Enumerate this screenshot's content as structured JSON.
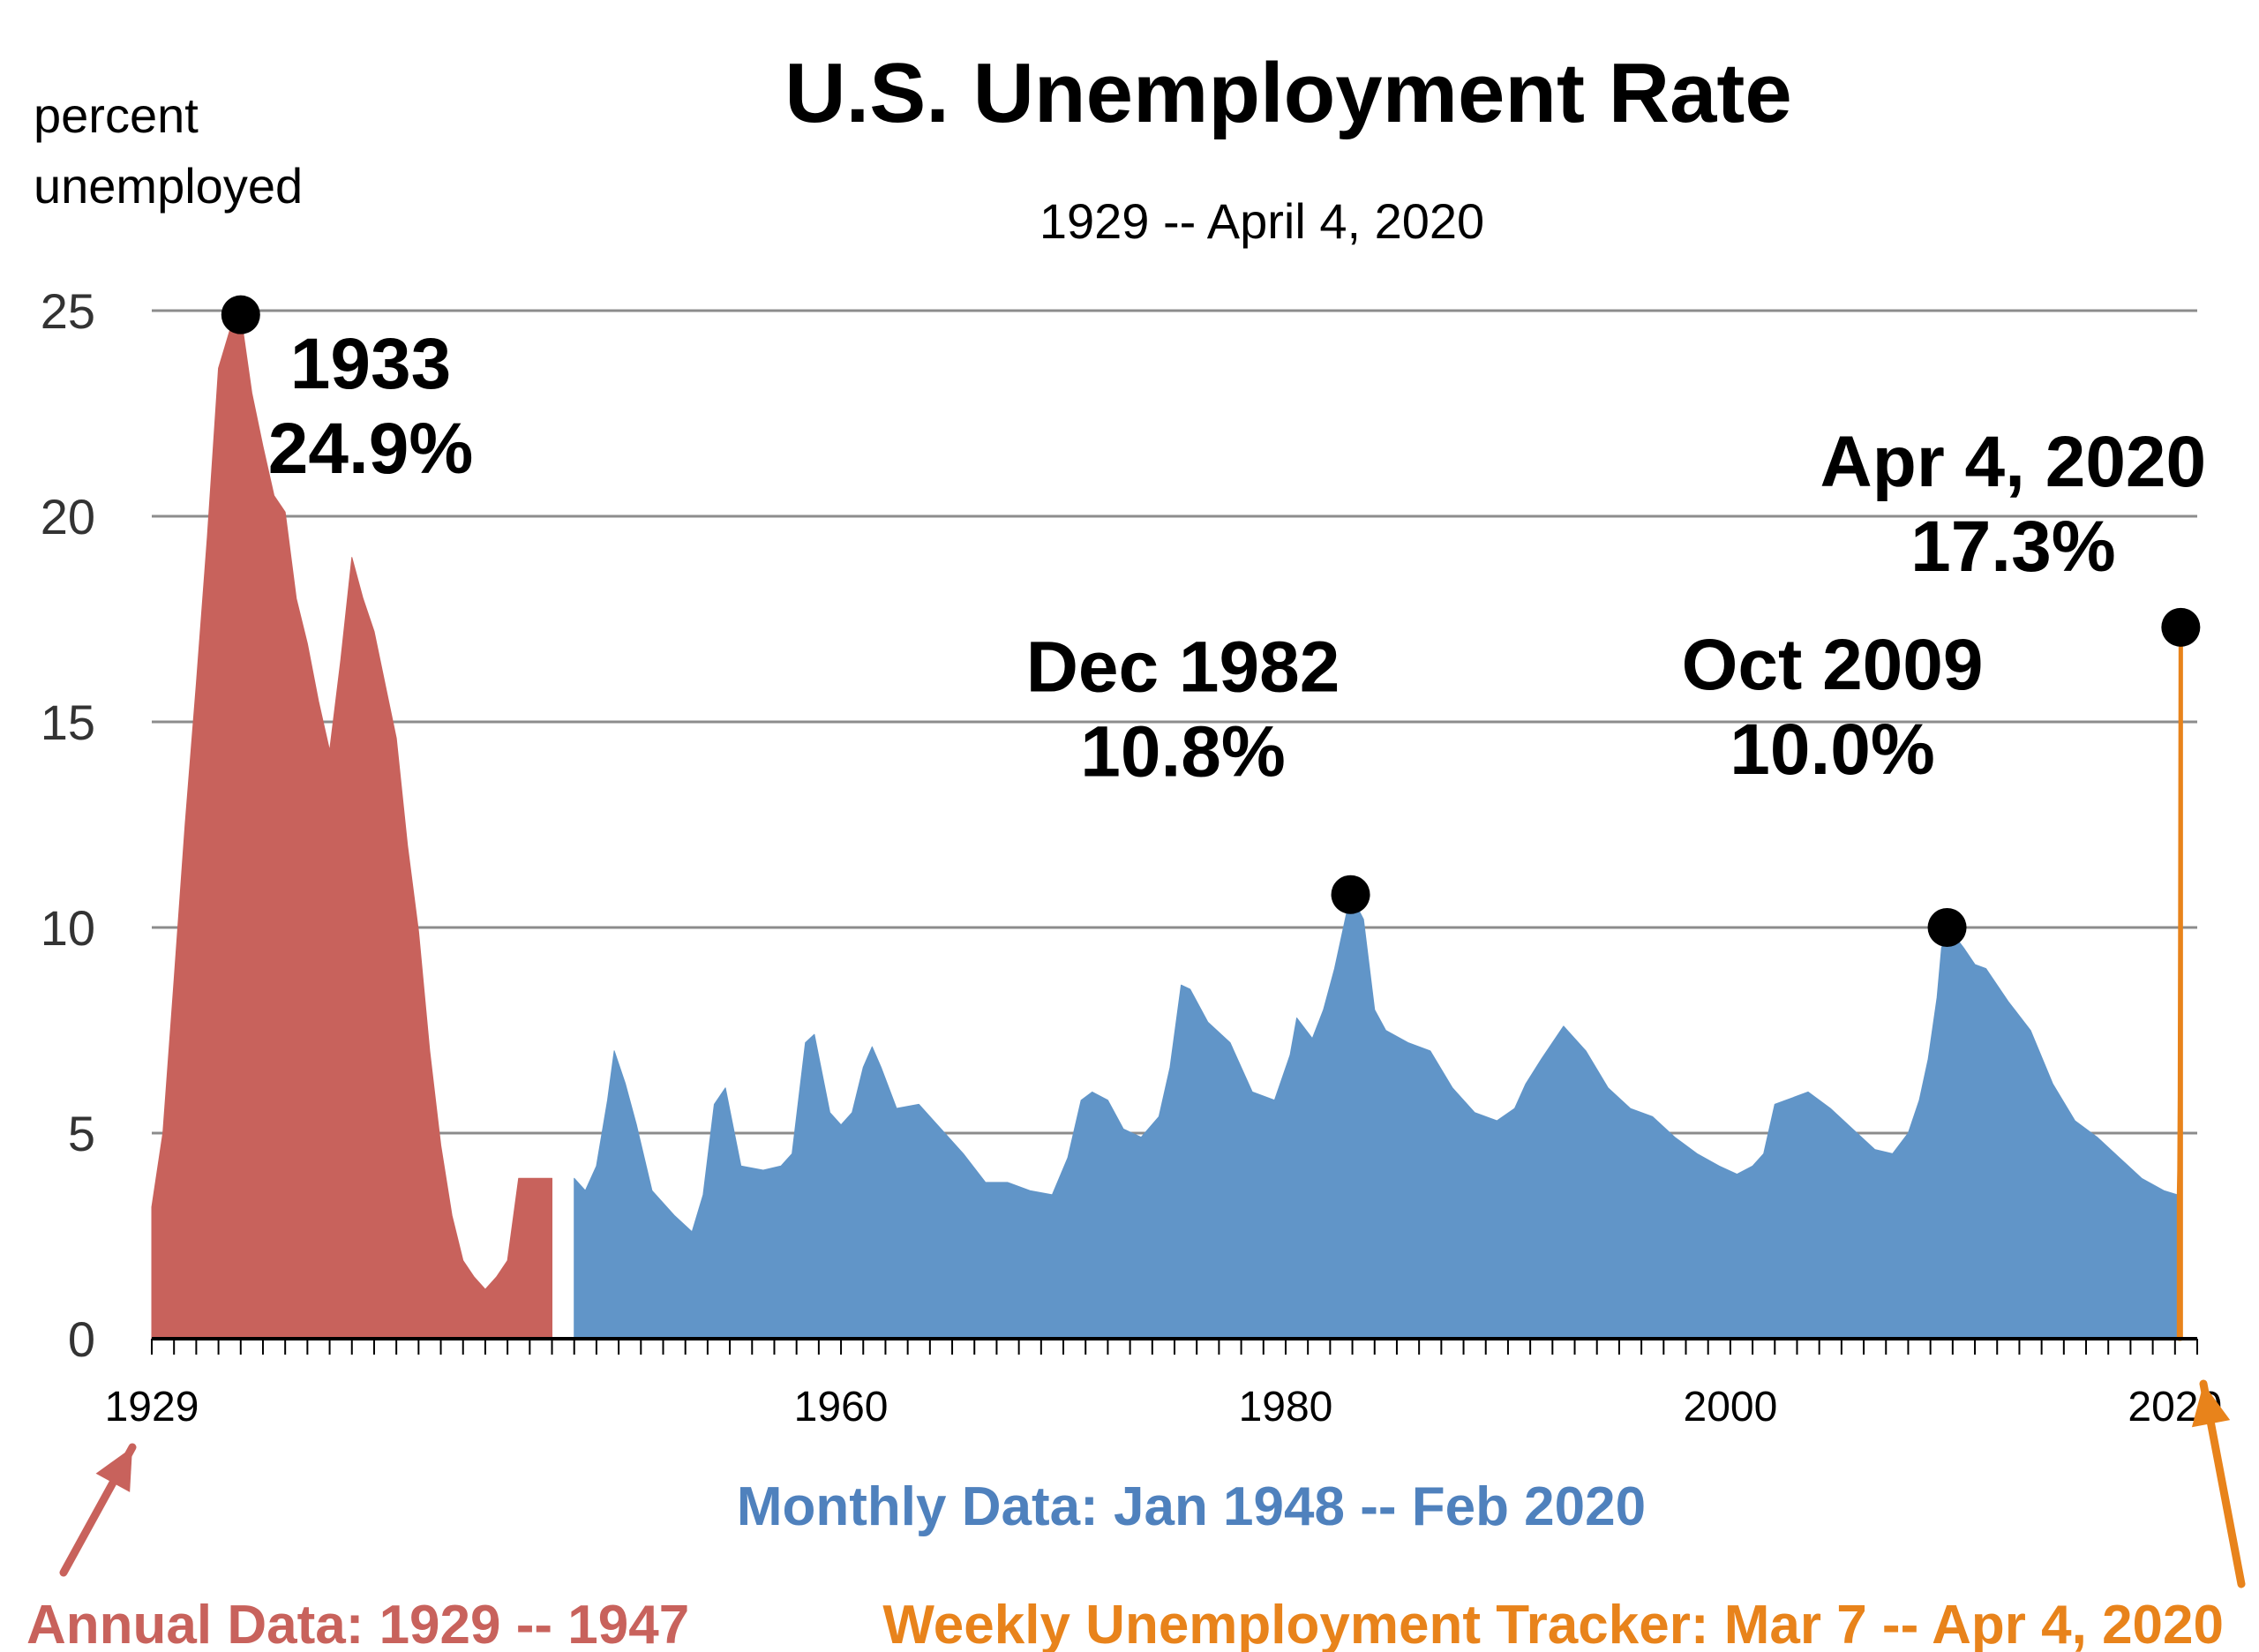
{
  "chart_data": {
    "type": "area",
    "title": "U.S. Unemployment Rate",
    "subtitle": "1929 -- April 4, 2020",
    "ylabel": [
      "percent",
      "unemployed"
    ],
    "ylim": [
      0,
      25
    ],
    "yticks": [
      0,
      5,
      10,
      15,
      20,
      25
    ],
    "xlim": [
      1929,
      2021
    ],
    "xticks": [
      {
        "value": 1929,
        "label": "1929"
      },
      {
        "value": 1960,
        "label": "1960"
      },
      {
        "value": 1980,
        "label": "1980"
      },
      {
        "value": 2000,
        "label": "2000"
      },
      {
        "value": 2020,
        "label": "2020"
      }
    ],
    "grid": true,
    "series": [
      {
        "name": "Annual Data: 1929 -- 1947",
        "color": "#c8625c",
        "x": [
          1929,
          1929.5,
          1930,
          1930.5,
          1931,
          1931.5,
          1932,
          1932.5,
          1933,
          1933.5,
          1934,
          1934.5,
          1935,
          1935.5,
          1936,
          1936.5,
          1937,
          1937.5,
          1938,
          1938.5,
          1939,
          1939.5,
          1940,
          1940.5,
          1941,
          1941.5,
          1942,
          1942.5,
          1943,
          1943.5,
          1944,
          1944.5,
          1945,
          1945.5,
          1946,
          1946.5,
          1947
        ],
        "y": [
          3.2,
          5.0,
          8.7,
          12.5,
          15.9,
          19.5,
          23.6,
          24.5,
          24.9,
          23.0,
          21.7,
          20.5,
          20.1,
          18.0,
          16.9,
          15.5,
          14.3,
          16.5,
          19.0,
          18.0,
          17.2,
          15.9,
          14.6,
          12.0,
          9.9,
          7.0,
          4.7,
          3.0,
          1.9,
          1.5,
          1.2,
          1.5,
          1.9,
          3.9,
          3.9,
          3.9,
          3.9
        ]
      },
      {
        "name": "Monthly Data: Jan 1948 -- Feb 2020",
        "color": "#6195c8",
        "x": [
          1948,
          1948.5,
          1949,
          1949.5,
          1949.8,
          1950.3,
          1950.8,
          1951.5,
          1952.5,
          1953.3,
          1953.8,
          1954.3,
          1954.8,
          1955.5,
          1956.5,
          1957.3,
          1957.8,
          1958.4,
          1958.8,
          1959.5,
          1960,
          1960.5,
          1961,
          1961.4,
          1961.8,
          1962.5,
          1963.5,
          1964.5,
          1965.5,
          1966.5,
          1967.5,
          1968.5,
          1969.5,
          1970.2,
          1970.8,
          1971.3,
          1972,
          1972.7,
          1973.5,
          1974.3,
          1974.8,
          1975.3,
          1975.7,
          1976.5,
          1977.5,
          1978.5,
          1979.5,
          1980.2,
          1980.5,
          1981.2,
          1981.7,
          1982.2,
          1982.6,
          1982.92,
          1983.5,
          1984,
          1984.5,
          1985.5,
          1986.5,
          1987.5,
          1988.5,
          1989.5,
          1990.3,
          1990.8,
          1991.5,
          1992.5,
          1993.5,
          1994.5,
          1995.5,
          1996.5,
          1997.5,
          1998.5,
          1999.5,
          2000.3,
          2001,
          2001.5,
          2002,
          2002.5,
          2003.5,
          2004.5,
          2005.5,
          2006.5,
          2007.3,
          2008,
          2008.5,
          2008.9,
          2009.3,
          2009.5,
          2009.8,
          2010.5,
          2011,
          2011.5,
          2012.5,
          2013.5,
          2014.5,
          2015.5,
          2016.5,
          2017.5,
          2018.5,
          2019.5,
          2020.1
        ],
        "y": [
          3.9,
          3.6,
          4.2,
          5.8,
          7.0,
          6.2,
          5.2,
          3.6,
          3.0,
          2.6,
          3.5,
          5.7,
          6.1,
          4.2,
          4.1,
          4.2,
          4.5,
          7.2,
          7.4,
          5.5,
          5.2,
          5.5,
          6.6,
          7.1,
          6.6,
          5.6,
          5.7,
          5.1,
          4.5,
          3.8,
          3.8,
          3.6,
          3.5,
          4.4,
          5.8,
          6.0,
          5.8,
          5.1,
          4.9,
          5.4,
          6.6,
          8.6,
          8.5,
          7.7,
          7.2,
          6.0,
          5.8,
          6.9,
          7.8,
          7.3,
          8.0,
          9.0,
          10.0,
          10.8,
          10.2,
          8.0,
          7.5,
          7.2,
          7.0,
          6.1,
          5.5,
          5.3,
          5.6,
          6.2,
          6.8,
          7.6,
          7.0,
          6.1,
          5.6,
          5.4,
          4.9,
          4.5,
          4.2,
          4.0,
          4.2,
          4.5,
          5.7,
          5.8,
          6.0,
          5.6,
          5.1,
          4.6,
          4.5,
          5.0,
          5.8,
          6.8,
          8.3,
          9.5,
          10.0,
          9.5,
          9.1,
          9.0,
          8.2,
          7.5,
          6.2,
          5.3,
          4.9,
          4.4,
          3.9,
          3.6,
          3.5
        ]
      },
      {
        "name": "Weekly Unemployment Tracker: Mar 7 -- Apr 4,  2020",
        "color": "#e8831b",
        "x": [
          2020.18,
          2020.2,
          2020.22,
          2020.24,
          2020.26
        ],
        "y": [
          3.5,
          4.1,
          5.9,
          10.5,
          17.3
        ]
      }
    ],
    "annotations": [
      {
        "x": 1933,
        "y": 24.9,
        "lines": [
          "1933",
          "24.9%"
        ]
      },
      {
        "x": 1982.92,
        "y": 10.8,
        "lines": [
          "Dec 1982",
          "10.8%"
        ]
      },
      {
        "x": 2009.75,
        "y": 10.0,
        "lines": [
          "Oct 2009",
          "10.0%"
        ]
      },
      {
        "x": 2020.26,
        "y": 17.3,
        "lines": [
          "Apr 4, 2020",
          "17.3%"
        ]
      }
    ],
    "footnotes": {
      "annual": "Annual Data: 1929 -- 1947",
      "monthly": "Monthly Data: Jan 1948 -- Feb 2020",
      "weekly": "Weekly Unemployment Tracker: Mar 7 -- Apr 4,  2020"
    },
    "colors": {
      "annual": "#c8625c",
      "monthly_text": "#4f81bd",
      "weekly": "#e8831b",
      "grid": "#8c8c8c",
      "marker": "#000000"
    }
  }
}
